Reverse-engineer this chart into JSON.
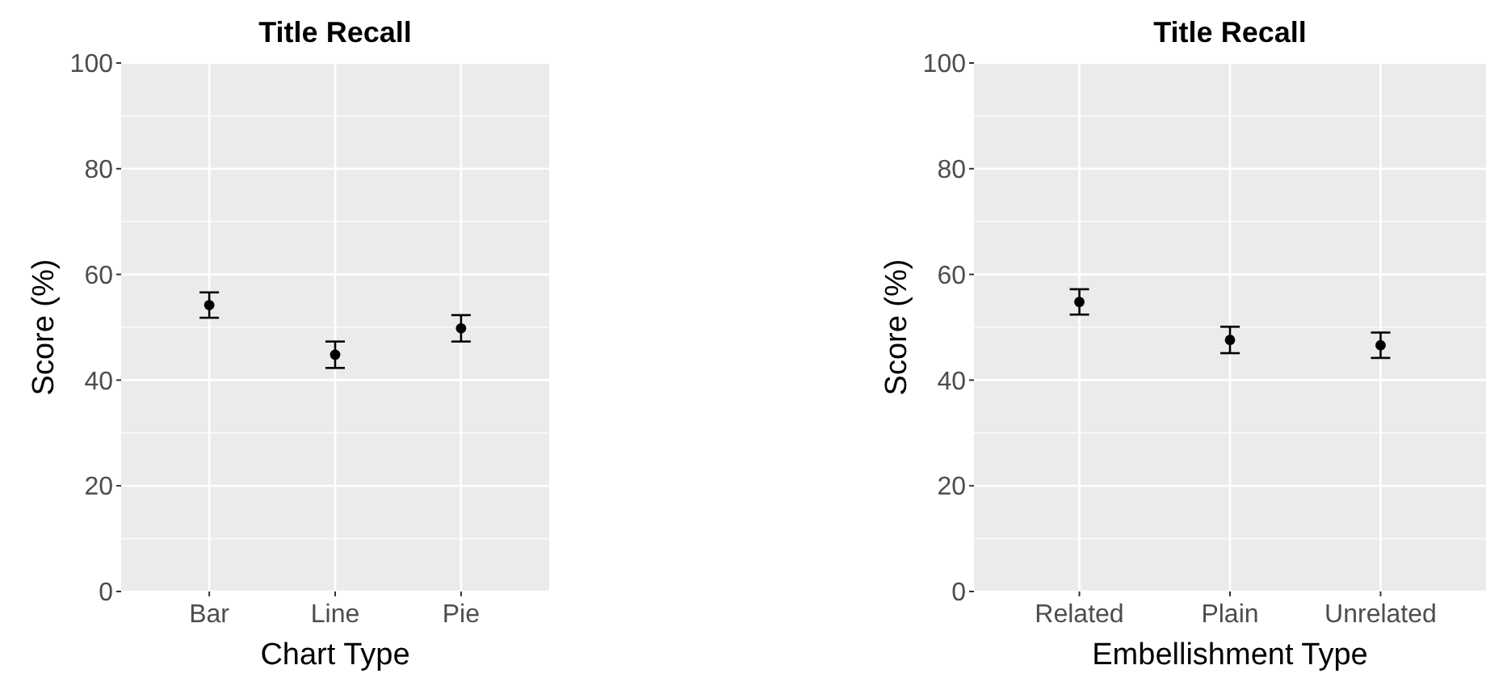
{
  "chart_data": [
    {
      "type": "scatter",
      "title": "Title Recall",
      "xlabel": "Chart Type",
      "ylabel": "Score (%)",
      "categories": [
        "Bar",
        "Line",
        "Pie"
      ],
      "values": [
        54.2,
        44.8,
        49.8
      ],
      "errors": [
        2.4,
        2.5,
        2.5
      ],
      "color": "#000000",
      "marker": "circle",
      "ylim": [
        0,
        100
      ],
      "yticks": [
        0,
        20,
        40,
        60,
        80,
        100
      ],
      "grid": true
    },
    {
      "type": "scatter",
      "title": "Title Recall",
      "xlabel": "Embellishment Type",
      "ylabel": "Score (%)",
      "categories": [
        "Related",
        "Plain",
        "Unrelated"
      ],
      "values": [
        54.8,
        47.6,
        46.6
      ],
      "errors": [
        2.4,
        2.5,
        2.4
      ],
      "color": "#000000",
      "marker": "circle",
      "ylim": [
        0,
        100
      ],
      "yticks": [
        0,
        20,
        40,
        60,
        80,
        100
      ],
      "grid": true
    }
  ]
}
